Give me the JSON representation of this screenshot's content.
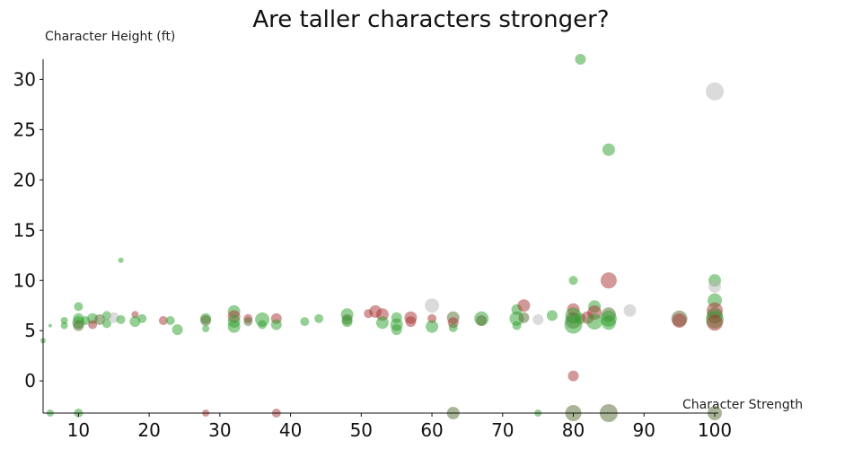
{
  "chart_data": {
    "type": "scatter",
    "title": "Are taller characters stronger?",
    "xlabel": "Character Strength",
    "ylabel": "Character Height (ft)",
    "xlim": [
      5,
      100
    ],
    "ylim": [
      -3.2,
      32
    ],
    "xticks": [
      10,
      20,
      30,
      40,
      50,
      60,
      70,
      80,
      90,
      100
    ],
    "yticks": [
      0,
      5,
      10,
      15,
      20,
      25,
      30
    ],
    "grid": false,
    "legend": "none",
    "colors": {
      "green": "#2ca02c",
      "red": "#a83232",
      "grey": "#b8b8b8",
      "olive": "#556b2f"
    },
    "points": [
      {
        "x": 5,
        "y": 4,
        "s": 3,
        "c": "green"
      },
      {
        "x": 6,
        "y": 5.5,
        "s": 2,
        "c": "green"
      },
      {
        "x": 8,
        "y": 5.5,
        "s": 4,
        "c": "green"
      },
      {
        "x": 8,
        "y": 6,
        "s": 4,
        "c": "green"
      },
      {
        "x": 10,
        "y": 7.4,
        "s": 5,
        "c": "green"
      },
      {
        "x": 10,
        "y": 6.2,
        "s": 6,
        "c": "green"
      },
      {
        "x": 10,
        "y": 5.8,
        "s": 7,
        "c": "green"
      },
      {
        "x": 10,
        "y": 5.5,
        "s": 6,
        "c": "olive"
      },
      {
        "x": 11,
        "y": 6,
        "s": 5,
        "c": "green"
      },
      {
        "x": 12,
        "y": 6.2,
        "s": 6,
        "c": "green"
      },
      {
        "x": 12,
        "y": 5.6,
        "s": 5,
        "c": "red"
      },
      {
        "x": 13,
        "y": 6.1,
        "s": 6,
        "c": "olive"
      },
      {
        "x": 14,
        "y": 6.5,
        "s": 5,
        "c": "green"
      },
      {
        "x": 14,
        "y": 5.7,
        "s": 5,
        "c": "green"
      },
      {
        "x": 15,
        "y": 6.3,
        "s": 6,
        "c": "grey"
      },
      {
        "x": 16,
        "y": 6.1,
        "s": 5,
        "c": "green"
      },
      {
        "x": 16,
        "y": 12,
        "s": 3,
        "c": "green"
      },
      {
        "x": 18,
        "y": 6.6,
        "s": 4,
        "c": "red"
      },
      {
        "x": 18,
        "y": 5.9,
        "s": 6,
        "c": "green"
      },
      {
        "x": 19,
        "y": 6.2,
        "s": 5,
        "c": "green"
      },
      {
        "x": 22,
        "y": 6,
        "s": 5,
        "c": "red"
      },
      {
        "x": 23,
        "y": 6,
        "s": 5,
        "c": "green"
      },
      {
        "x": 24,
        "y": 5.1,
        "s": 6,
        "c": "green"
      },
      {
        "x": 28,
        "y": 6.2,
        "s": 6,
        "c": "green"
      },
      {
        "x": 28,
        "y": 6,
        "s": 6,
        "c": "olive"
      },
      {
        "x": 28,
        "y": 5.2,
        "s": 4,
        "c": "green"
      },
      {
        "x": 32,
        "y": 6.9,
        "s": 7,
        "c": "green"
      },
      {
        "x": 32,
        "y": 6.4,
        "s": 7,
        "c": "red"
      },
      {
        "x": 32,
        "y": 5.9,
        "s": 7,
        "c": "green"
      },
      {
        "x": 32,
        "y": 5.4,
        "s": 7,
        "c": "green"
      },
      {
        "x": 34,
        "y": 6.2,
        "s": 5,
        "c": "red"
      },
      {
        "x": 34,
        "y": 5.9,
        "s": 5,
        "c": "olive"
      },
      {
        "x": 36,
        "y": 6.1,
        "s": 8,
        "c": "green"
      },
      {
        "x": 36,
        "y": 5.6,
        "s": 5,
        "c": "green"
      },
      {
        "x": 38,
        "y": 6.2,
        "s": 6,
        "c": "red"
      },
      {
        "x": 38,
        "y": 5.6,
        "s": 6,
        "c": "green"
      },
      {
        "x": 42,
        "y": 5.9,
        "s": 5,
        "c": "green"
      },
      {
        "x": 44,
        "y": 6.2,
        "s": 5,
        "c": "green"
      },
      {
        "x": 48,
        "y": 6.6,
        "s": 7,
        "c": "green"
      },
      {
        "x": 48,
        "y": 6.1,
        "s": 6,
        "c": "olive"
      },
      {
        "x": 48,
        "y": 5.9,
        "s": 6,
        "c": "green"
      },
      {
        "x": 51,
        "y": 6.7,
        "s": 5,
        "c": "red"
      },
      {
        "x": 52,
        "y": 6.9,
        "s": 7,
        "c": "red"
      },
      {
        "x": 53,
        "y": 6.6,
        "s": 7,
        "c": "red"
      },
      {
        "x": 53,
        "y": 5.8,
        "s": 7,
        "c": "green"
      },
      {
        "x": 55,
        "y": 6.3,
        "s": 6,
        "c": "green"
      },
      {
        "x": 55,
        "y": 5.6,
        "s": 7,
        "c": "green"
      },
      {
        "x": 55,
        "y": 5.1,
        "s": 6,
        "c": "green"
      },
      {
        "x": 57,
        "y": 6.3,
        "s": 7,
        "c": "red"
      },
      {
        "x": 57,
        "y": 5.9,
        "s": 6,
        "c": "red"
      },
      {
        "x": 60,
        "y": 7.5,
        "s": 8,
        "c": "grey"
      },
      {
        "x": 60,
        "y": 6.2,
        "s": 5,
        "c": "red"
      },
      {
        "x": 60,
        "y": 5.4,
        "s": 7,
        "c": "green"
      },
      {
        "x": 63,
        "y": 6.3,
        "s": 7,
        "c": "olive"
      },
      {
        "x": 63,
        "y": 5.8,
        "s": 6,
        "c": "red"
      },
      {
        "x": 63,
        "y": 5.3,
        "s": 5,
        "c": "green"
      },
      {
        "x": 67,
        "y": 6.2,
        "s": 8,
        "c": "green"
      },
      {
        "x": 67,
        "y": 6,
        "s": 6,
        "c": "olive"
      },
      {
        "x": 72,
        "y": 7.1,
        "s": 6,
        "c": "green"
      },
      {
        "x": 72,
        "y": 6.2,
        "s": 8,
        "c": "green"
      },
      {
        "x": 72,
        "y": 5.5,
        "s": 5,
        "c": "green"
      },
      {
        "x": 73,
        "y": 7.5,
        "s": 7,
        "c": "red"
      },
      {
        "x": 73,
        "y": 6.3,
        "s": 6,
        "c": "olive"
      },
      {
        "x": 75,
        "y": 6.1,
        "s": 6,
        "c": "grey"
      },
      {
        "x": 77,
        "y": 6.5,
        "s": 6,
        "c": "green"
      },
      {
        "x": 80,
        "y": 10,
        "s": 5,
        "c": "green"
      },
      {
        "x": 80,
        "y": 7.1,
        "s": 7,
        "c": "red"
      },
      {
        "x": 80,
        "y": 6.5,
        "s": 9,
        "c": "green"
      },
      {
        "x": 80,
        "y": 6,
        "s": 9,
        "c": "olive"
      },
      {
        "x": 80,
        "y": 5.6,
        "s": 10,
        "c": "green"
      },
      {
        "x": 80,
        "y": 0.5,
        "s": 6,
        "c": "red"
      },
      {
        "x": 81,
        "y": 32,
        "s": 6,
        "c": "green"
      },
      {
        "x": 81,
        "y": 6.2,
        "s": 6,
        "c": "green"
      },
      {
        "x": 82,
        "y": 6.3,
        "s": 7,
        "c": "red"
      },
      {
        "x": 83,
        "y": 7.4,
        "s": 7,
        "c": "green"
      },
      {
        "x": 83,
        "y": 6.8,
        "s": 8,
        "c": "red"
      },
      {
        "x": 83,
        "y": 5.9,
        "s": 9,
        "c": "green"
      },
      {
        "x": 85,
        "y": 23,
        "s": 7,
        "c": "green"
      },
      {
        "x": 85,
        "y": 10,
        "s": 9,
        "c": "red"
      },
      {
        "x": 85,
        "y": 6.6,
        "s": 8,
        "c": "olive"
      },
      {
        "x": 85,
        "y": 6.2,
        "s": 9,
        "c": "green"
      },
      {
        "x": 85,
        "y": 5.8,
        "s": 8,
        "c": "green"
      },
      {
        "x": 88,
        "y": 7,
        "s": 7,
        "c": "grey"
      },
      {
        "x": 95,
        "y": 6.2,
        "s": 9,
        "c": "olive"
      },
      {
        "x": 95,
        "y": 6,
        "s": 8,
        "c": "red"
      },
      {
        "x": 100,
        "y": 28.8,
        "s": 10,
        "c": "grey"
      },
      {
        "x": 100,
        "y": 10,
        "s": 7,
        "c": "green"
      },
      {
        "x": 100,
        "y": 9.4,
        "s": 7,
        "c": "grey"
      },
      {
        "x": 100,
        "y": 8,
        "s": 8,
        "c": "green"
      },
      {
        "x": 100,
        "y": 7,
        "s": 9,
        "c": "red"
      },
      {
        "x": 100,
        "y": 6.5,
        "s": 9,
        "c": "olive"
      },
      {
        "x": 100,
        "y": 6.1,
        "s": 10,
        "c": "green"
      },
      {
        "x": 100,
        "y": 5.8,
        "s": 9,
        "c": "red"
      },
      {
        "x": 6,
        "y": -3.2,
        "s": 4,
        "c": "green"
      },
      {
        "x": 10,
        "y": -3.2,
        "s": 5,
        "c": "green"
      },
      {
        "x": 28,
        "y": -3.2,
        "s": 4,
        "c": "red"
      },
      {
        "x": 38,
        "y": -3.2,
        "s": 5,
        "c": "red"
      },
      {
        "x": 63,
        "y": -3.2,
        "s": 7,
        "c": "olive"
      },
      {
        "x": 75,
        "y": -3.2,
        "s": 4,
        "c": "green"
      },
      {
        "x": 80,
        "y": -3.2,
        "s": 9,
        "c": "olive"
      },
      {
        "x": 85,
        "y": -3.2,
        "s": 10,
        "c": "olive"
      },
      {
        "x": 100,
        "y": -3.2,
        "s": 8,
        "c": "olive"
      }
    ]
  }
}
